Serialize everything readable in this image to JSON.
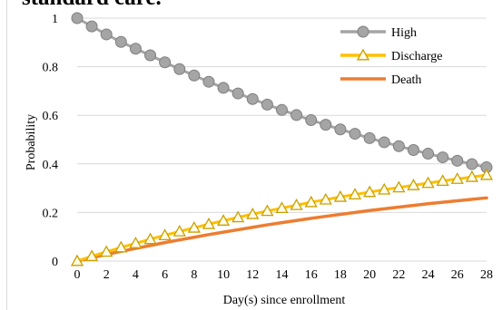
{
  "chart_data": {
    "type": "line",
    "title": "standard care.",
    "xlabel": "Day(s) since enrollment",
    "ylabel": "Probability",
    "xlim": [
      0,
      28
    ],
    "ylim": [
      0,
      1
    ],
    "x_ticks": [
      "0",
      "2",
      "4",
      "6",
      "8",
      "10",
      "12",
      "14",
      "16",
      "18",
      "20",
      "22",
      "24",
      "26",
      "28"
    ],
    "y_ticks": [
      "0",
      "0.2",
      "0.4",
      "0.6",
      "0.8",
      "1"
    ],
    "grid": true,
    "legend_position": "top-right",
    "x": [
      0,
      1,
      2,
      3,
      4,
      5,
      6,
      7,
      8,
      9,
      10,
      11,
      12,
      13,
      14,
      15,
      16,
      17,
      18,
      19,
      20,
      21,
      22,
      23,
      24,
      25,
      26,
      27,
      28
    ],
    "series": [
      {
        "name": "High",
        "color": "#a5a5a5",
        "marker": "circle",
        "values": [
          1.0,
          0.966,
          0.933,
          0.902,
          0.874,
          0.847,
          0.818,
          0.79,
          0.764,
          0.738,
          0.713,
          0.69,
          0.667,
          0.644,
          0.622,
          0.601,
          0.58,
          0.561,
          0.542,
          0.524,
          0.506,
          0.489,
          0.473,
          0.457,
          0.442,
          0.427,
          0.413,
          0.399,
          0.386
        ]
      },
      {
        "name": "Discharge",
        "color": "#ffc000",
        "marker": "triangle",
        "values": [
          0.0,
          0.02,
          0.038,
          0.056,
          0.073,
          0.09,
          0.106,
          0.122,
          0.137,
          0.152,
          0.166,
          0.18,
          0.193,
          0.206,
          0.218,
          0.23,
          0.242,
          0.253,
          0.264,
          0.274,
          0.284,
          0.294,
          0.303,
          0.312,
          0.321,
          0.33,
          0.338,
          0.346,
          0.354
        ]
      },
      {
        "name": "Death",
        "color": "#ed7d31",
        "marker": "none",
        "values": [
          0.0,
          0.014,
          0.027,
          0.04,
          0.052,
          0.064,
          0.076,
          0.087,
          0.098,
          0.109,
          0.119,
          0.129,
          0.139,
          0.149,
          0.158,
          0.167,
          0.176,
          0.184,
          0.192,
          0.2,
          0.208,
          0.215,
          0.222,
          0.229,
          0.236,
          0.242,
          0.248,
          0.254,
          0.26
        ]
      }
    ]
  }
}
